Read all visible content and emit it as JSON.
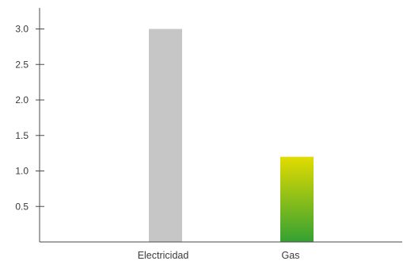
{
  "chart_data": {
    "type": "bar",
    "title": "",
    "xlabel": "",
    "ylabel": "",
    "categories": [
      "Electricidad",
      "Gas"
    ],
    "values": [
      3.0,
      1.2
    ],
    "ylim": [
      0,
      3.2
    ],
    "yticks": [
      0.5,
      1.0,
      1.5,
      2.0,
      2.5,
      3.0
    ],
    "ytick_labels": [
      "0.5",
      "1.0",
      "1.5",
      "2.0",
      "2.5",
      "3.0"
    ],
    "grid": false,
    "legend": "none",
    "bar_styles": [
      {
        "fill": "solid",
        "color": "#c6c6c6"
      },
      {
        "fill": "vertical-gradient",
        "color_top": "#e2dc00",
        "color_bottom": "#34a132"
      }
    ],
    "axis_color": "#4a4a4a"
  }
}
